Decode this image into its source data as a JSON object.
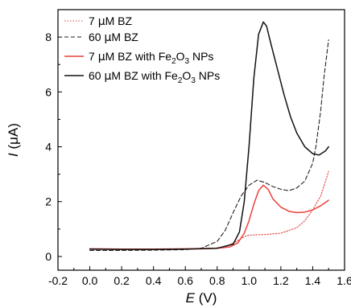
{
  "chart_data": {
    "type": "line",
    "xlabel": {
      "var": "E",
      "unit": " (V)"
    },
    "ylabel": {
      "var": "I",
      "unit": " (μA)"
    },
    "xlim": [
      -0.2,
      1.6
    ],
    "ylim": [
      -0.5,
      9.0
    ],
    "xticks": [
      "-0.2",
      "0.0",
      "0.2",
      "0.4",
      "0.6",
      "0.8",
      "1.0",
      "1.2",
      "1.4",
      "1.6"
    ],
    "yticks": [
      "0",
      "2",
      "4",
      "6",
      "8"
    ],
    "grid": false,
    "legend_position": "top-left",
    "legend": [
      {
        "pre": "7 ",
        "mu": "μ",
        "post": "M BZ",
        "sub": "",
        "tail": ""
      },
      {
        "pre": "60 ",
        "mu": "μ",
        "post": "M BZ",
        "sub": "",
        "tail": ""
      },
      {
        "pre": "7 ",
        "mu": "μ",
        "post": "M BZ with Fe",
        "sub2": "2",
        "mid": "O",
        "sub3": "3",
        "tail": " NPs"
      },
      {
        "pre": "60 ",
        "mu": "μ",
        "post": "M BZ with Fe",
        "sub2": "2",
        "mid": "O",
        "sub3": "3",
        "tail": " NPs"
      }
    ],
    "series": [
      {
        "name": "7 μM BZ",
        "color": "#e8413c",
        "dash": "dotted",
        "x": [
          0.0,
          0.2,
          0.4,
          0.6,
          0.75,
          0.85,
          0.92,
          0.97,
          1.0,
          1.1,
          1.2,
          1.3,
          1.35,
          1.4,
          1.45,
          1.5
        ],
        "y": [
          0.26,
          0.25,
          0.25,
          0.26,
          0.28,
          0.35,
          0.55,
          0.72,
          0.78,
          0.8,
          0.85,
          1.05,
          1.3,
          1.7,
          2.2,
          3.1
        ]
      },
      {
        "name": "60 μM BZ",
        "color": "#222222",
        "dash": "dashed",
        "x": [
          0.0,
          0.2,
          0.4,
          0.6,
          0.7,
          0.8,
          0.85,
          0.9,
          0.95,
          1.0,
          1.05,
          1.1,
          1.15,
          1.2,
          1.25,
          1.3,
          1.35,
          1.4,
          1.42,
          1.45,
          1.47,
          1.5
        ],
        "y": [
          0.22,
          0.22,
          0.23,
          0.25,
          0.3,
          0.55,
          0.95,
          1.6,
          2.2,
          2.6,
          2.78,
          2.7,
          2.55,
          2.45,
          2.4,
          2.5,
          2.75,
          3.4,
          4.0,
          5.3,
          6.5,
          7.9
        ]
      },
      {
        "name": "7 μM BZ with Fe2O3 NPs",
        "color": "#e8413c",
        "dash": "solid",
        "x": [
          0.0,
          0.2,
          0.4,
          0.6,
          0.8,
          0.88,
          0.93,
          0.97,
          1.0,
          1.03,
          1.06,
          1.09,
          1.12,
          1.15,
          1.2,
          1.25,
          1.3,
          1.35,
          1.4,
          1.45,
          1.5
        ],
        "y": [
          0.28,
          0.27,
          0.27,
          0.28,
          0.3,
          0.35,
          0.5,
          0.85,
          1.3,
          1.9,
          2.4,
          2.6,
          2.45,
          2.1,
          1.8,
          1.65,
          1.6,
          1.62,
          1.7,
          1.85,
          2.05
        ]
      },
      {
        "name": "60 μM BZ with Fe2O3 NPs",
        "color": "#111111",
        "dash": "solid",
        "x": [
          0.0,
          0.2,
          0.4,
          0.6,
          0.8,
          0.9,
          0.94,
          0.97,
          1.0,
          1.03,
          1.06,
          1.09,
          1.11,
          1.14,
          1.18,
          1.22,
          1.26,
          1.3,
          1.35,
          1.4,
          1.44,
          1.48,
          1.5
        ],
        "y": [
          0.27,
          0.26,
          0.26,
          0.27,
          0.3,
          0.45,
          0.9,
          2.0,
          4.0,
          6.5,
          8.1,
          8.55,
          8.4,
          7.7,
          6.8,
          5.9,
          5.1,
          4.5,
          4.0,
          3.75,
          3.7,
          3.85,
          4.0
        ]
      }
    ]
  }
}
